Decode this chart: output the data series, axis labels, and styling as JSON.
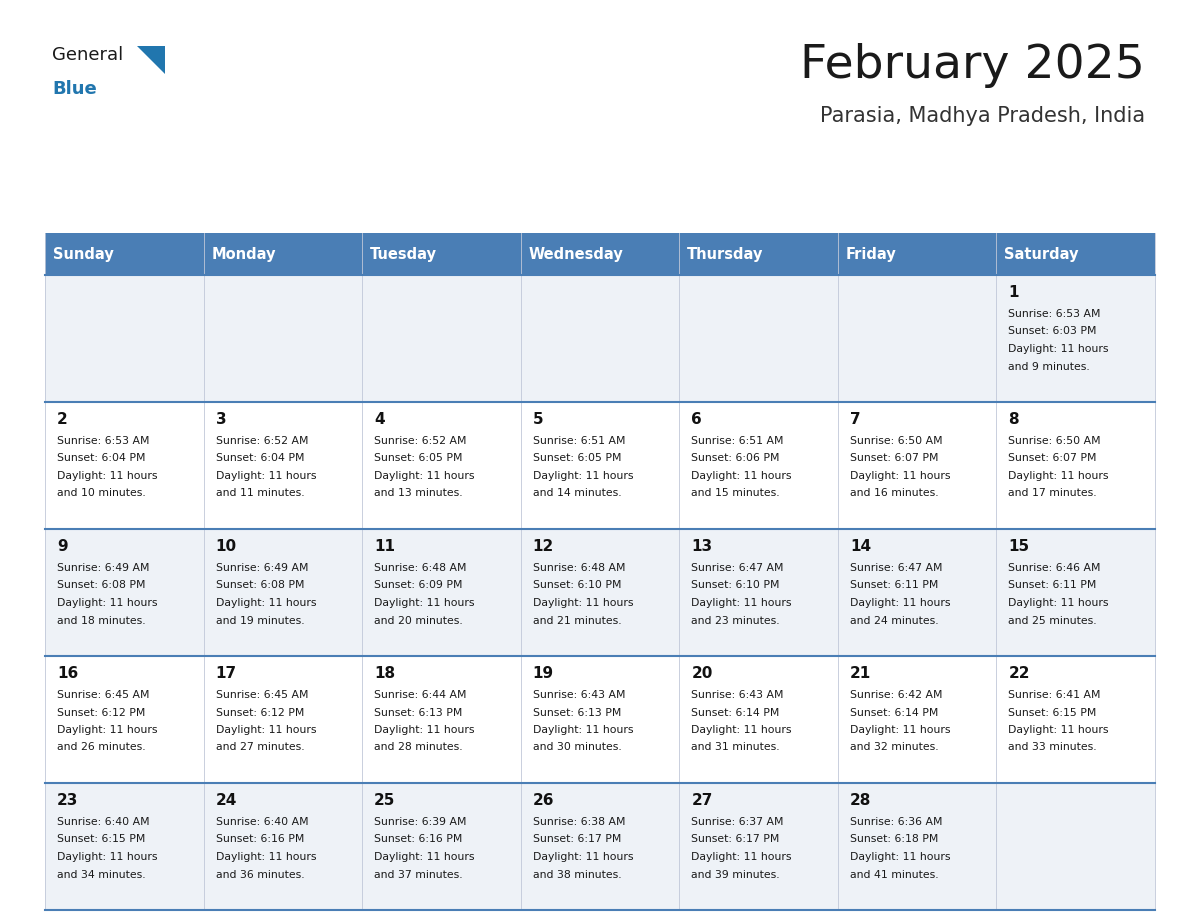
{
  "title": "February 2025",
  "subtitle": "Parasia, Madhya Pradesh, India",
  "days_of_week": [
    "Sunday",
    "Monday",
    "Tuesday",
    "Wednesday",
    "Thursday",
    "Friday",
    "Saturday"
  ],
  "header_bg": "#4a7eb5",
  "header_text": "#ffffff",
  "cell_bg_light": "#eef2f7",
  "cell_bg_white": "#ffffff",
  "row_line_color": "#4a7eb5",
  "grid_line_color": "#c0c8d8",
  "title_color": "#1a1a1a",
  "subtitle_color": "#333333",
  "number_color": "#111111",
  "text_color": "#1a1a1a",
  "logo_general_color": "#1a1a1a",
  "logo_blue_color": "#2176ae",
  "calendar_data": [
    [
      null,
      null,
      null,
      null,
      null,
      null,
      {
        "day": 1,
        "sunrise": "6:53 AM",
        "sunset": "6:03 PM",
        "daylight_h": "11 hours",
        "daylight_m": "and 9 minutes."
      }
    ],
    [
      {
        "day": 2,
        "sunrise": "6:53 AM",
        "sunset": "6:04 PM",
        "daylight_h": "11 hours",
        "daylight_m": "and 10 minutes."
      },
      {
        "day": 3,
        "sunrise": "6:52 AM",
        "sunset": "6:04 PM",
        "daylight_h": "11 hours",
        "daylight_m": "and 11 minutes."
      },
      {
        "day": 4,
        "sunrise": "6:52 AM",
        "sunset": "6:05 PM",
        "daylight_h": "11 hours",
        "daylight_m": "and 13 minutes."
      },
      {
        "day": 5,
        "sunrise": "6:51 AM",
        "sunset": "6:05 PM",
        "daylight_h": "11 hours",
        "daylight_m": "and 14 minutes."
      },
      {
        "day": 6,
        "sunrise": "6:51 AM",
        "sunset": "6:06 PM",
        "daylight_h": "11 hours",
        "daylight_m": "and 15 minutes."
      },
      {
        "day": 7,
        "sunrise": "6:50 AM",
        "sunset": "6:07 PM",
        "daylight_h": "11 hours",
        "daylight_m": "and 16 minutes."
      },
      {
        "day": 8,
        "sunrise": "6:50 AM",
        "sunset": "6:07 PM",
        "daylight_h": "11 hours",
        "daylight_m": "and 17 minutes."
      }
    ],
    [
      {
        "day": 9,
        "sunrise": "6:49 AM",
        "sunset": "6:08 PM",
        "daylight_h": "11 hours",
        "daylight_m": "and 18 minutes."
      },
      {
        "day": 10,
        "sunrise": "6:49 AM",
        "sunset": "6:08 PM",
        "daylight_h": "11 hours",
        "daylight_m": "and 19 minutes."
      },
      {
        "day": 11,
        "sunrise": "6:48 AM",
        "sunset": "6:09 PM",
        "daylight_h": "11 hours",
        "daylight_m": "and 20 minutes."
      },
      {
        "day": 12,
        "sunrise": "6:48 AM",
        "sunset": "6:10 PM",
        "daylight_h": "11 hours",
        "daylight_m": "and 21 minutes."
      },
      {
        "day": 13,
        "sunrise": "6:47 AM",
        "sunset": "6:10 PM",
        "daylight_h": "11 hours",
        "daylight_m": "and 23 minutes."
      },
      {
        "day": 14,
        "sunrise": "6:47 AM",
        "sunset": "6:11 PM",
        "daylight_h": "11 hours",
        "daylight_m": "and 24 minutes."
      },
      {
        "day": 15,
        "sunrise": "6:46 AM",
        "sunset": "6:11 PM",
        "daylight_h": "11 hours",
        "daylight_m": "and 25 minutes."
      }
    ],
    [
      {
        "day": 16,
        "sunrise": "6:45 AM",
        "sunset": "6:12 PM",
        "daylight_h": "11 hours",
        "daylight_m": "and 26 minutes."
      },
      {
        "day": 17,
        "sunrise": "6:45 AM",
        "sunset": "6:12 PM",
        "daylight_h": "11 hours",
        "daylight_m": "and 27 minutes."
      },
      {
        "day": 18,
        "sunrise": "6:44 AM",
        "sunset": "6:13 PM",
        "daylight_h": "11 hours",
        "daylight_m": "and 28 minutes."
      },
      {
        "day": 19,
        "sunrise": "6:43 AM",
        "sunset": "6:13 PM",
        "daylight_h": "11 hours",
        "daylight_m": "and 30 minutes."
      },
      {
        "day": 20,
        "sunrise": "6:43 AM",
        "sunset": "6:14 PM",
        "daylight_h": "11 hours",
        "daylight_m": "and 31 minutes."
      },
      {
        "day": 21,
        "sunrise": "6:42 AM",
        "sunset": "6:14 PM",
        "daylight_h": "11 hours",
        "daylight_m": "and 32 minutes."
      },
      {
        "day": 22,
        "sunrise": "6:41 AM",
        "sunset": "6:15 PM",
        "daylight_h": "11 hours",
        "daylight_m": "and 33 minutes."
      }
    ],
    [
      {
        "day": 23,
        "sunrise": "6:40 AM",
        "sunset": "6:15 PM",
        "daylight_h": "11 hours",
        "daylight_m": "and 34 minutes."
      },
      {
        "day": 24,
        "sunrise": "6:40 AM",
        "sunset": "6:16 PM",
        "daylight_h": "11 hours",
        "daylight_m": "and 36 minutes."
      },
      {
        "day": 25,
        "sunrise": "6:39 AM",
        "sunset": "6:16 PM",
        "daylight_h": "11 hours",
        "daylight_m": "and 37 minutes."
      },
      {
        "day": 26,
        "sunrise": "6:38 AM",
        "sunset": "6:17 PM",
        "daylight_h": "11 hours",
        "daylight_m": "and 38 minutes."
      },
      {
        "day": 27,
        "sunrise": "6:37 AM",
        "sunset": "6:17 PM",
        "daylight_h": "11 hours",
        "daylight_m": "and 39 minutes."
      },
      {
        "day": 28,
        "sunrise": "6:36 AM",
        "sunset": "6:18 PM",
        "daylight_h": "11 hours",
        "daylight_m": "and 41 minutes."
      },
      null
    ]
  ]
}
